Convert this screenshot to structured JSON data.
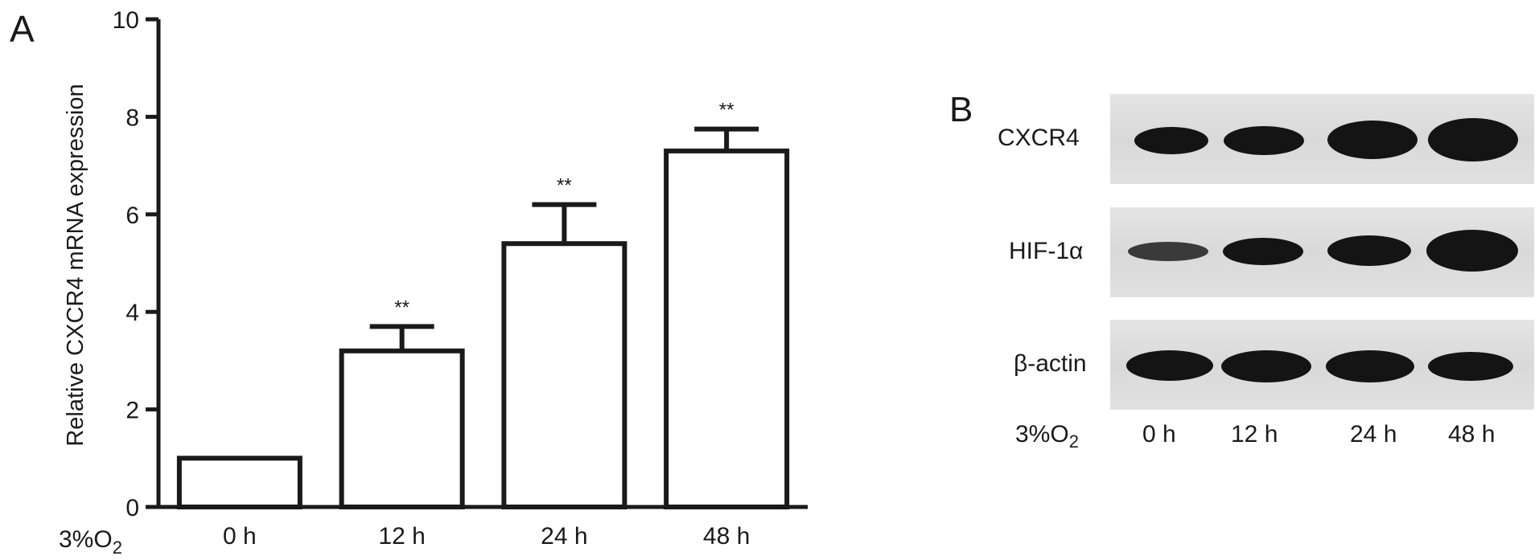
{
  "panel_a_label": "A",
  "panel_b_label": "B",
  "condition_label": "3%O",
  "condition_subscript": "2",
  "chart_data": {
    "type": "bar",
    "title": "",
    "xlabel": "",
    "ylabel": "Relative CXCR4 mRNA expression",
    "categories": [
      "0 h",
      "12 h",
      "24 h",
      "48 h"
    ],
    "values": [
      1.0,
      3.2,
      5.4,
      7.3
    ],
    "error": [
      0,
      0.5,
      0.8,
      0.45
    ],
    "significance": [
      "",
      "**",
      "**",
      "**"
    ],
    "ylim": [
      0,
      10
    ],
    "yticks": [
      0,
      2,
      4,
      6,
      8,
      10
    ],
    "grid": false,
    "bar_fill": "#ffffff",
    "bar_stroke": "#1a1a1a"
  },
  "western_blot": {
    "rows": [
      {
        "label": "CXCR4",
        "intensities": [
          0.55,
          0.65,
          0.9,
          1.0
        ]
      },
      {
        "label": "HIF-1α",
        "intensities": [
          0.3,
          0.6,
          0.7,
          1.0
        ]
      },
      {
        "label": "β-actin",
        "intensities": [
          0.85,
          0.88,
          0.88,
          0.8
        ]
      }
    ],
    "lanes": [
      "0 h",
      "12 h",
      "24 h",
      "48 h"
    ]
  }
}
